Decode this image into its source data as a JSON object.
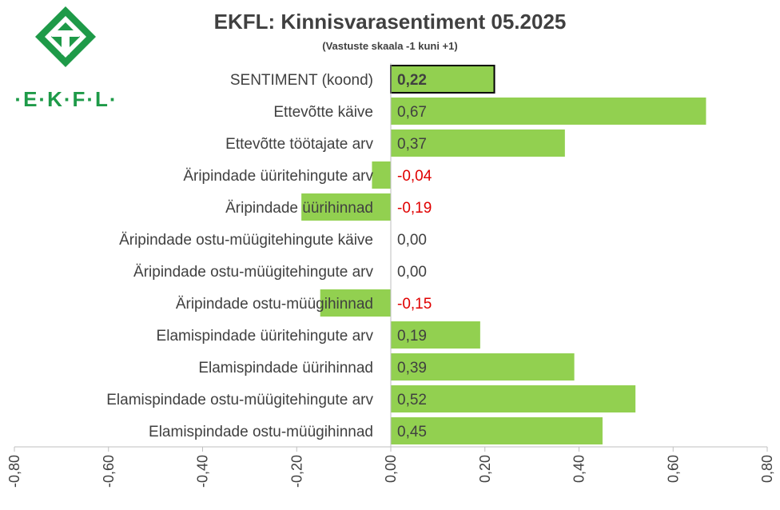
{
  "chart_data": {
    "type": "bar",
    "orientation": "horizontal",
    "title": "EKFL: Kinnisvarasentiment 05.2025",
    "subtitle": "(Vastuste skaala -1 kuni +1)",
    "categories": [
      "SENTIMENT (koond)",
      "Ettevõtte käive",
      "Ettevõtte töötajate arv",
      "Äripindade üüritehingute arv",
      "Äripindade üürihinnad",
      "Äripindade ostu-müügitehingute käive",
      "Äripindade ostu-müügitehingute arv",
      "Äripindade ostu-müügihinnad",
      "Elamispindade üüritehingute arv",
      "Elamispindade üürihinnad",
      "Elamispindade ostu-müügitehingute arv",
      "Elamispindade ostu-müügihinnad"
    ],
    "values": [
      0.22,
      0.67,
      0.37,
      -0.04,
      -0.19,
      0.0,
      0.0,
      -0.15,
      0.19,
      0.39,
      0.52,
      0.45
    ],
    "value_labels": [
      "0,22",
      "0,67",
      "0,37",
      "-0,04",
      "-0,19",
      "0,00",
      "0,00",
      "-0,15",
      "0,19",
      "0,39",
      "0,52",
      "0,45"
    ],
    "highlight_index": 0,
    "xlim": [
      -0.8,
      0.8
    ],
    "xticks": [
      -0.8,
      -0.6,
      -0.4,
      -0.2,
      0.0,
      0.2,
      0.4,
      0.6,
      0.8
    ],
    "xtick_labels": [
      "-0,80",
      "-0,60",
      "-0,40",
      "-0,20",
      "0,00",
      "0,20",
      "0,40",
      "0,60",
      "0,80"
    ],
    "grid": false,
    "legend": "none",
    "colors": {
      "bar": "#92d050",
      "highlight_border": "#000000",
      "negative_label": "#e00000",
      "positive_label": "#404040",
      "axis": "#bfbfbf",
      "logo": "#1e9a48"
    }
  },
  "logo": {
    "text": "·E·K·F·L·"
  }
}
